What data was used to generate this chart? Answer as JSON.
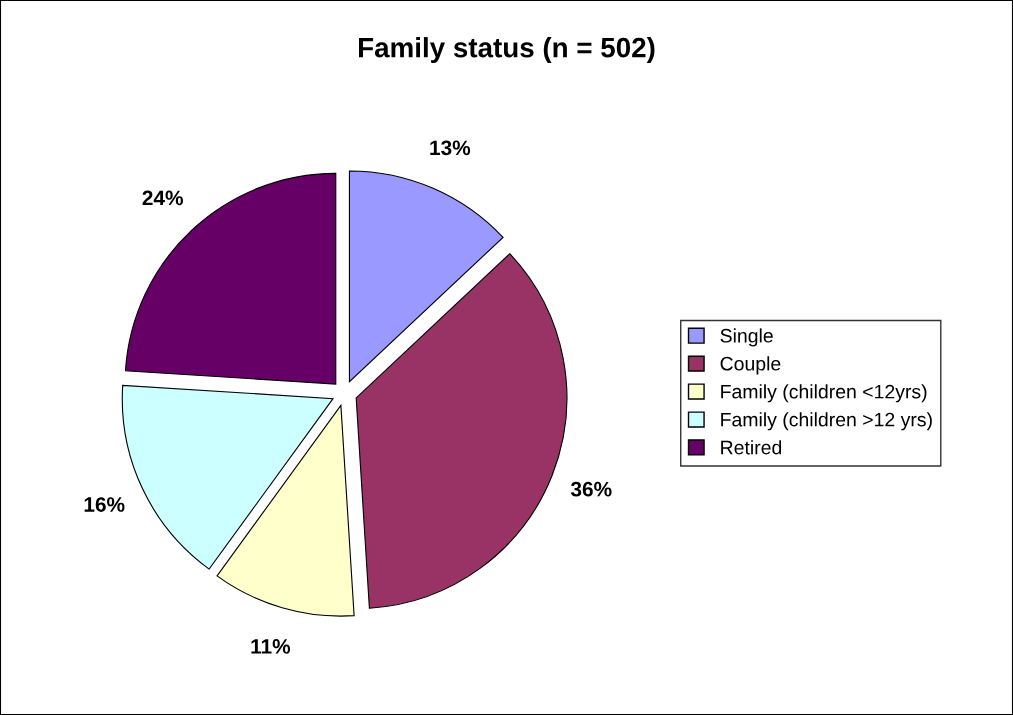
{
  "chart_data": {
    "type": "pie",
    "title": "Family status (n = 502)",
    "categories": [
      "Single",
      "Couple",
      "Family (children <12yrs)",
      "Family (children >12 yrs)",
      "Retired"
    ],
    "values": [
      13,
      36,
      11,
      16,
      24
    ],
    "colors": [
      "#9999ff",
      "#993366",
      "#ffffcc",
      "#ccffff",
      "#660066"
    ],
    "value_labels": [
      "13%",
      "36%",
      "11%",
      "16%",
      "24%"
    ],
    "legend": "right"
  }
}
